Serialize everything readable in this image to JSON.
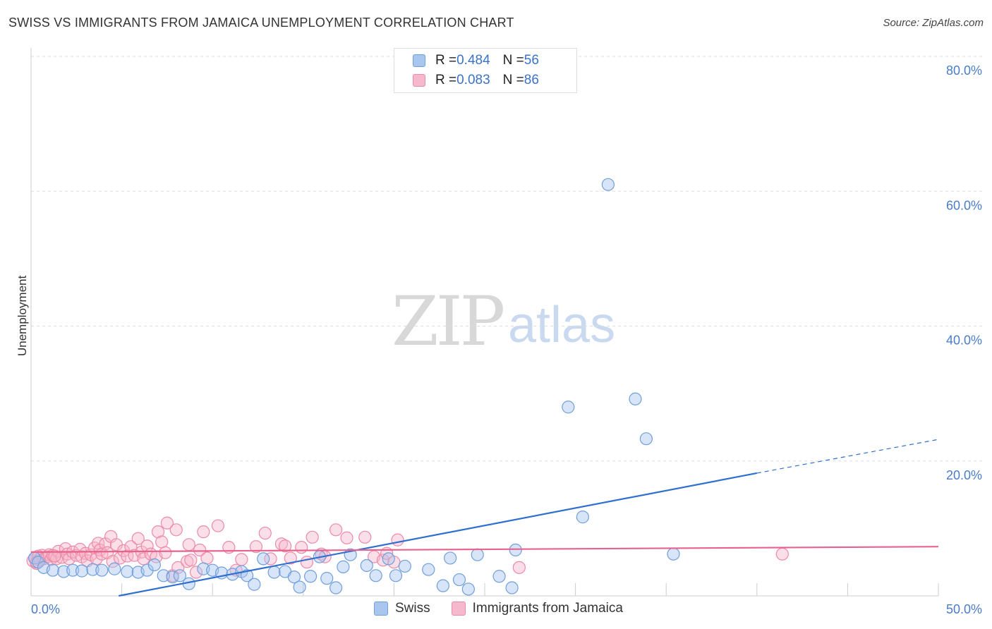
{
  "header": {
    "title": "SWISS VS IMMIGRANTS FROM JAMAICA UNEMPLOYMENT CORRELATION CHART",
    "source": "Source: ZipAtlas.com"
  },
  "watermark": {
    "zip": "ZIP",
    "atlas": "atlas"
  },
  "legend": {
    "swiss": {
      "r_label": "R = ",
      "r_value": "0.484",
      "n_label": "N = ",
      "n_value": "56"
    },
    "jamaica": {
      "r_label": "R = ",
      "r_value": "0.083",
      "n_label": "N = ",
      "n_value": "86"
    }
  },
  "colors": {
    "swiss_fill": "#a9c6ef",
    "swiss_stroke": "#6f9fdc",
    "swiss_line": "#2e6fd0",
    "jamaica_fill": "#f6b8cc",
    "jamaica_stroke": "#ec8aa8",
    "jamaica_line": "#e8628e",
    "grid": "#dddddd",
    "tick": "#4a7cc9"
  },
  "chart_data": {
    "type": "scatter",
    "title": "SWISS VS IMMIGRANTS FROM JAMAICA UNEMPLOYMENT CORRELATION CHART",
    "xlabel": "",
    "ylabel": "Unemployment",
    "xlim": [
      0,
      50
    ],
    "ylim": [
      0,
      80
    ],
    "x_tick_labels": [
      "0.0%",
      "50.0%"
    ],
    "y_ticks": [
      20,
      40,
      60,
      80
    ],
    "y_tick_labels": [
      "20.0%",
      "40.0%",
      "60.0%",
      "80.0%"
    ],
    "grid": true,
    "legend_position": "top-center",
    "series": [
      {
        "name": "Swiss",
        "R": 0.484,
        "N": 56,
        "trend": {
          "x": [
            0,
            40
          ],
          "y": [
            -2.5,
            18.2
          ],
          "dashed_to": {
            "x": 50,
            "y": 23.2
          }
        },
        "points": [
          [
            0.2,
            5.6
          ],
          [
            0.4,
            5.0
          ],
          [
            0.7,
            4.2
          ],
          [
            1.2,
            3.8
          ],
          [
            1.8,
            3.6
          ],
          [
            2.3,
            3.8
          ],
          [
            2.8,
            3.7
          ],
          [
            3.4,
            3.9
          ],
          [
            3.9,
            3.8
          ],
          [
            4.6,
            4.0
          ],
          [
            5.3,
            3.6
          ],
          [
            5.9,
            3.5
          ],
          [
            6.4,
            3.8
          ],
          [
            6.8,
            4.6
          ],
          [
            7.3,
            3.0
          ],
          [
            7.8,
            2.8
          ],
          [
            8.2,
            3.0
          ],
          [
            8.7,
            1.8
          ],
          [
            9.5,
            4.0
          ],
          [
            10.0,
            3.8
          ],
          [
            10.5,
            3.4
          ],
          [
            11.1,
            3.2
          ],
          [
            11.6,
            3.6
          ],
          [
            11.9,
            3.0
          ],
          [
            12.3,
            1.7
          ],
          [
            12.8,
            5.5
          ],
          [
            13.4,
            3.5
          ],
          [
            14.0,
            3.6
          ],
          [
            14.5,
            2.8
          ],
          [
            14.8,
            1.3
          ],
          [
            15.4,
            2.9
          ],
          [
            15.9,
            5.8
          ],
          [
            16.3,
            2.6
          ],
          [
            16.8,
            1.2
          ],
          [
            17.2,
            4.3
          ],
          [
            17.6,
            6.1
          ],
          [
            18.5,
            4.5
          ],
          [
            19.0,
            3.0
          ],
          [
            19.7,
            5.5
          ],
          [
            20.1,
            3.0
          ],
          [
            20.6,
            4.4
          ],
          [
            21.9,
            3.9
          ],
          [
            22.7,
            1.5
          ],
          [
            23.1,
            5.6
          ],
          [
            23.6,
            2.4
          ],
          [
            24.1,
            1.0
          ],
          [
            24.6,
            6.1
          ],
          [
            25.8,
            2.9
          ],
          [
            26.5,
            1.2
          ],
          [
            26.7,
            6.8
          ],
          [
            29.6,
            28.0
          ],
          [
            30.4,
            11.7
          ],
          [
            31.8,
            61.0
          ],
          [
            33.3,
            29.2
          ],
          [
            33.9,
            23.3
          ],
          [
            35.4,
            6.2
          ]
        ]
      },
      {
        "name": "Immigrants from Jamaica",
        "R": 0.083,
        "N": 86,
        "trend": {
          "x": [
            0,
            50
          ],
          "y": [
            6.5,
            7.3
          ]
        },
        "points": [
          [
            0.1,
            5.2
          ],
          [
            0.2,
            5.6
          ],
          [
            0.3,
            4.8
          ],
          [
            0.4,
            5.9
          ],
          [
            0.5,
            5.3
          ],
          [
            0.6,
            6.0
          ],
          [
            0.7,
            5.5
          ],
          [
            0.9,
            5.8
          ],
          [
            1.0,
            6.1
          ],
          [
            1.1,
            5.4
          ],
          [
            1.2,
            6.0
          ],
          [
            1.4,
            5.5
          ],
          [
            1.5,
            6.6
          ],
          [
            1.7,
            5.7
          ],
          [
            1.9,
            7.0
          ],
          [
            2.0,
            6.2
          ],
          [
            2.1,
            5.5
          ],
          [
            2.3,
            6.5
          ],
          [
            2.5,
            6.0
          ],
          [
            2.7,
            6.9
          ],
          [
            2.8,
            5.8
          ],
          [
            3.0,
            6.3
          ],
          [
            3.1,
            5.2
          ],
          [
            3.3,
            6.1
          ],
          [
            3.5,
            7.1
          ],
          [
            3.6,
            5.5
          ],
          [
            3.7,
            7.8
          ],
          [
            3.8,
            6.8
          ],
          [
            3.9,
            6.2
          ],
          [
            4.1,
            7.7
          ],
          [
            4.2,
            6.4
          ],
          [
            4.4,
            8.8
          ],
          [
            4.5,
            5.1
          ],
          [
            4.7,
            7.6
          ],
          [
            4.9,
            5.6
          ],
          [
            5.1,
            6.7
          ],
          [
            5.3,
            5.9
          ],
          [
            5.5,
            7.3
          ],
          [
            5.7,
            6.0
          ],
          [
            5.9,
            8.5
          ],
          [
            6.1,
            6.5
          ],
          [
            6.2,
            5.5
          ],
          [
            6.4,
            7.4
          ],
          [
            6.6,
            6.2
          ],
          [
            6.9,
            5.8
          ],
          [
            7.0,
            9.5
          ],
          [
            7.2,
            8.0
          ],
          [
            7.4,
            6.4
          ],
          [
            7.5,
            10.8
          ],
          [
            7.8,
            3.0
          ],
          [
            8.0,
            9.8
          ],
          [
            8.1,
            4.2
          ],
          [
            8.6,
            5.1
          ],
          [
            8.7,
            7.6
          ],
          [
            8.8,
            5.3
          ],
          [
            9.1,
            3.5
          ],
          [
            9.3,
            6.8
          ],
          [
            9.5,
            9.5
          ],
          [
            9.7,
            5.6
          ],
          [
            10.3,
            10.4
          ],
          [
            10.9,
            7.2
          ],
          [
            11.3,
            3.8
          ],
          [
            11.6,
            5.4
          ],
          [
            12.4,
            7.3
          ],
          [
            12.9,
            9.3
          ],
          [
            13.2,
            5.5
          ],
          [
            13.8,
            7.7
          ],
          [
            14.0,
            7.4
          ],
          [
            14.3,
            5.6
          ],
          [
            14.9,
            7.2
          ],
          [
            15.2,
            5.0
          ],
          [
            15.5,
            8.7
          ],
          [
            16.0,
            6.2
          ],
          [
            16.2,
            5.8
          ],
          [
            16.8,
            9.8
          ],
          [
            17.4,
            8.6
          ],
          [
            18.4,
            8.7
          ],
          [
            18.9,
            5.8
          ],
          [
            19.4,
            5.3
          ],
          [
            19.6,
            6.3
          ],
          [
            20.0,
            5.0
          ],
          [
            20.2,
            8.3
          ],
          [
            26.9,
            4.2
          ],
          [
            41.4,
            6.2
          ],
          [
            0.3,
            5.0
          ],
          [
            1.3,
            5.9
          ]
        ]
      }
    ]
  }
}
